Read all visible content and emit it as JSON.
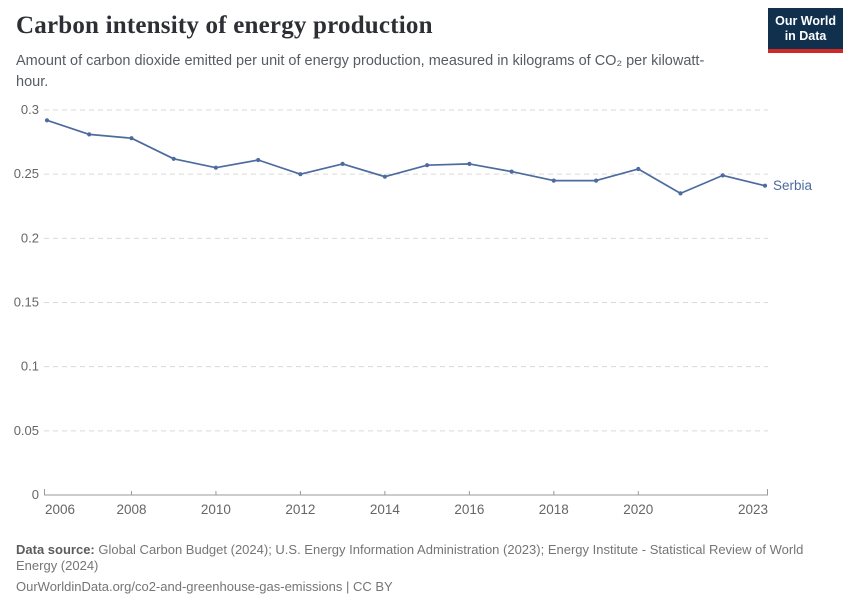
{
  "header": {
    "title": "Carbon intensity of energy production",
    "subtitle": "Amount of carbon dioxide emitted per unit of energy production, measured in kilograms of CO₂ per kilowatt-hour.",
    "logo": {
      "line1": "Our World",
      "line2": "in Data",
      "bg_color": "#10304e",
      "stripe_color": "#cf2a24"
    }
  },
  "chart_data": {
    "type": "line",
    "title": "Carbon intensity of energy production",
    "unit": "kilograms of CO₂ per kilowatt-hour",
    "x": [
      2006,
      2007,
      2008,
      2009,
      2010,
      2011,
      2012,
      2013,
      2014,
      2015,
      2016,
      2017,
      2018,
      2019,
      2020,
      2021,
      2022,
      2023
    ],
    "series": [
      {
        "name": "Serbia",
        "color": "#4c6b9e",
        "values": [
          0.292,
          0.281,
          0.278,
          0.262,
          0.255,
          0.261,
          0.25,
          0.258,
          0.248,
          0.257,
          0.258,
          0.252,
          0.245,
          0.245,
          0.254,
          0.235,
          0.249,
          0.241
        ]
      }
    ],
    "ylim": [
      0,
      0.3
    ],
    "yticks": [
      {
        "value": 0,
        "label": "0"
      },
      {
        "value": 0.05,
        "label": "0.05"
      },
      {
        "value": 0.1,
        "label": "0.1"
      },
      {
        "value": 0.15,
        "label": "0.15"
      },
      {
        "value": 0.2,
        "label": "0.2"
      },
      {
        "value": 0.25,
        "label": "0.25"
      },
      {
        "value": 0.3,
        "label": "0.3"
      }
    ],
    "xticks": [
      2006,
      2008,
      2010,
      2012,
      2014,
      2016,
      2018,
      2020,
      2023
    ],
    "grid": "horizontal dashed",
    "legend_position": "line-end label"
  },
  "footer": {
    "source_label": "Data source:",
    "source_text": " Global Carbon Budget (2024); U.S. Energy Information Administration (2023); Energy Institute - Statistical Review of World Energy (2024)",
    "attribution": "OurWorldinData.org/co2-and-greenhouse-gas-emissions | CC BY"
  },
  "colors": {
    "background": "#ffffff",
    "line": "#4c6b9e",
    "grid": "#d9d9d9",
    "axis": "#9a9a9a",
    "tick_text": "#666666",
    "title_text": "#2d2f34",
    "subtitle_text": "#555d63",
    "footer_text": "#757575"
  }
}
